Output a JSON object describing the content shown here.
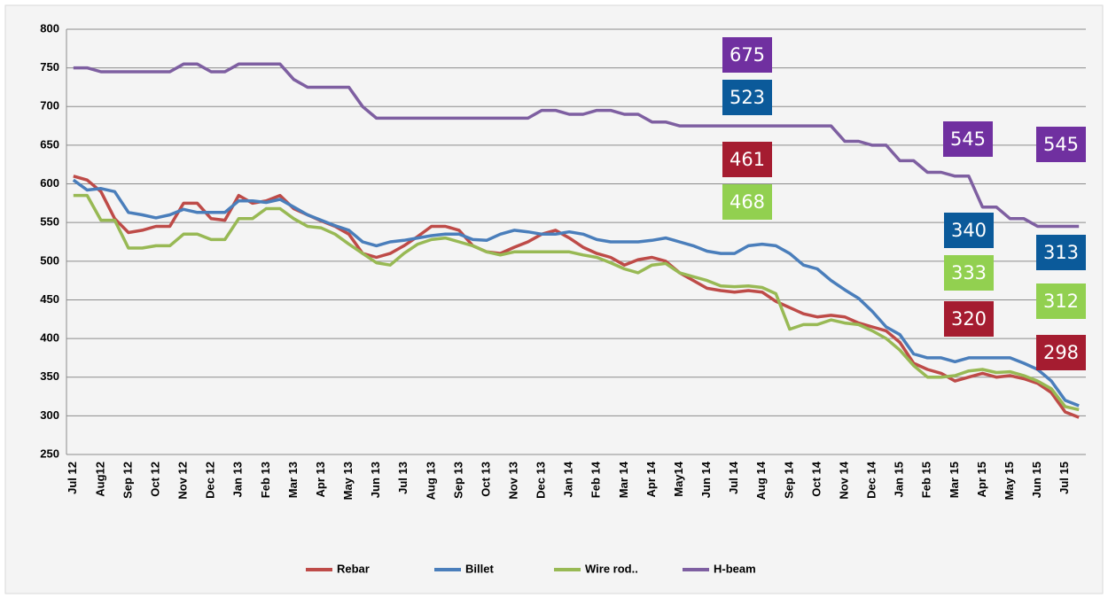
{
  "chart_data": {
    "type": "line",
    "categories": [
      "Jul 12",
      null,
      "Aug12",
      null,
      "Sep 12",
      null,
      "Oct 12",
      null,
      "Nov 12",
      null,
      "Dec 12",
      null,
      "Jan 13",
      null,
      "Feb 13",
      null,
      "Mar 13",
      null,
      "Apr 13",
      null,
      "May 13",
      null,
      "Jun 13",
      null,
      "Jul 13",
      null,
      "Aug 13",
      null,
      "Sep 13",
      null,
      "Oct 13",
      null,
      "Nov 13",
      null,
      "Dec 13",
      null,
      "Jan 14",
      null,
      "Feb 14",
      null,
      "Mar 14",
      null,
      "Apr 14",
      null,
      "May14",
      null,
      "Jun 14",
      null,
      "Jul 14",
      null,
      "Aug 14",
      null,
      "Sep 14",
      null,
      "Oct 14",
      null,
      "Nov 14",
      null,
      "Dec 14",
      null,
      "Jan 15",
      null,
      "Feb 15",
      null,
      "Mar 15",
      null,
      "Apr 15",
      null,
      "May 15",
      null,
      "Jun 15",
      null,
      "Jul 15",
      null
    ],
    "series": [
      {
        "name": "Rebar",
        "color": "#be4b48",
        "values": [
          610,
          605,
          590,
          555,
          537,
          540,
          545,
          545,
          575,
          575,
          555,
          553,
          585,
          575,
          578,
          585,
          568,
          560,
          552,
          545,
          535,
          510,
          505,
          510,
          520,
          532,
          545,
          545,
          540,
          520,
          512,
          510,
          518,
          525,
          535,
          540,
          530,
          518,
          510,
          505,
          495,
          502,
          505,
          500,
          485,
          475,
          465,
          462,
          460,
          462,
          460,
          448,
          440,
          432,
          428,
          430,
          428,
          420,
          415,
          410,
          395,
          368,
          360,
          355,
          345,
          350,
          355,
          350,
          352,
          348,
          342,
          330,
          305,
          298
        ]
      },
      {
        "name": "Billet",
        "color": "#4a7ebb",
        "values": [
          605,
          592,
          594,
          590,
          563,
          560,
          556,
          560,
          567,
          563,
          563,
          563,
          578,
          578,
          576,
          580,
          570,
          560,
          553,
          546,
          540,
          525,
          520,
          525,
          527,
          530,
          533,
          535,
          535,
          528,
          527,
          535,
          540,
          538,
          535,
          535,
          538,
          535,
          528,
          525,
          525,
          525,
          527,
          530,
          525,
          520,
          513,
          510,
          510,
          520,
          522,
          520,
          510,
          495,
          490,
          475,
          463,
          452,
          435,
          415,
          405,
          380,
          375,
          375,
          370,
          375,
          375,
          375,
          375,
          368,
          360,
          345,
          320,
          313
        ]
      },
      {
        "name": "Wire rod..",
        "color": "#98b954",
        "values": [
          585,
          585,
          553,
          553,
          517,
          517,
          520,
          520,
          535,
          535,
          528,
          528,
          555,
          555,
          568,
          568,
          555,
          545,
          543,
          535,
          522,
          510,
          498,
          495,
          510,
          522,
          528,
          530,
          525,
          520,
          512,
          508,
          512,
          512,
          512,
          512,
          512,
          508,
          505,
          498,
          490,
          485,
          495,
          497,
          485,
          480,
          475,
          468,
          467,
          468,
          466,
          458,
          412,
          418,
          418,
          424,
          420,
          418,
          410,
          400,
          385,
          365,
          350,
          350,
          352,
          358,
          360,
          356,
          357,
          352,
          345,
          335,
          312,
          308
        ]
      },
      {
        "name": "H-beam",
        "color": "#7e5fa1",
        "values": [
          750,
          750,
          745,
          745,
          745,
          745,
          745,
          745,
          755,
          755,
          745,
          745,
          755,
          755,
          755,
          755,
          735,
          725,
          725,
          725,
          725,
          700,
          685,
          685,
          685,
          685,
          685,
          685,
          685,
          685,
          685,
          685,
          685,
          685,
          695,
          695,
          690,
          690,
          695,
          695,
          690,
          690,
          680,
          680,
          675,
          675,
          675,
          675,
          675,
          675,
          675,
          675,
          675,
          675,
          675,
          675,
          655,
          655,
          650,
          650,
          630,
          630,
          615,
          615,
          610,
          610,
          570,
          570,
          555,
          555,
          545,
          545,
          545,
          545
        ]
      }
    ],
    "ylim": [
      250,
      800
    ],
    "yticks": [
      250,
      300,
      350,
      400,
      450,
      500,
      550,
      600,
      650,
      700,
      750,
      800
    ],
    "grid": true,
    "legend": "bottom",
    "annotations": [
      {
        "text": "675",
        "color": "#7030a0"
      },
      {
        "text": "523",
        "color": "#0b5a9a"
      },
      {
        "text": "461",
        "color": "#a51c30"
      },
      {
        "text": "468",
        "color": "#92d050"
      },
      {
        "text": "545",
        "color": "#7030a0"
      },
      {
        "text": "545",
        "color": "#7030a0"
      },
      {
        "text": "340",
        "color": "#0b5a9a"
      },
      {
        "text": "313",
        "color": "#0b5a9a"
      },
      {
        "text": "333",
        "color": "#92d050"
      },
      {
        "text": "312",
        "color": "#92d050"
      },
      {
        "text": "320",
        "color": "#a51c30"
      },
      {
        "text": "298",
        "color": "#a51c30"
      }
    ]
  }
}
